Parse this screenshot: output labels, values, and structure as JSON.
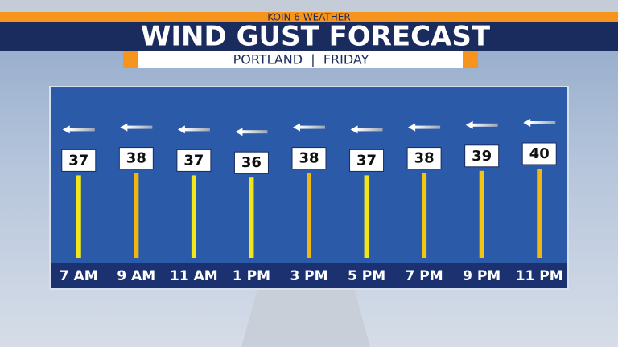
{
  "chart_data": {
    "type": "bar",
    "header": "KOIN 6 WEATHER",
    "title": "WIND GUST FORECAST",
    "subtitle": "PORTLAND  |  FRIDAY",
    "categories": [
      "7 AM",
      "9 AM",
      "11 AM",
      "1 PM",
      "3 PM",
      "5 PM",
      "7 PM",
      "9 PM",
      "11 PM"
    ],
    "values": [
      37,
      38,
      37,
      36,
      38,
      37,
      38,
      39,
      40
    ],
    "colors": [
      "#f3e51a",
      "#f2b512",
      "#f3e51a",
      "#f3e51a",
      "#f2b512",
      "#f3e51a",
      "#f2c514",
      "#f2c514",
      "#f2b512"
    ]
  }
}
